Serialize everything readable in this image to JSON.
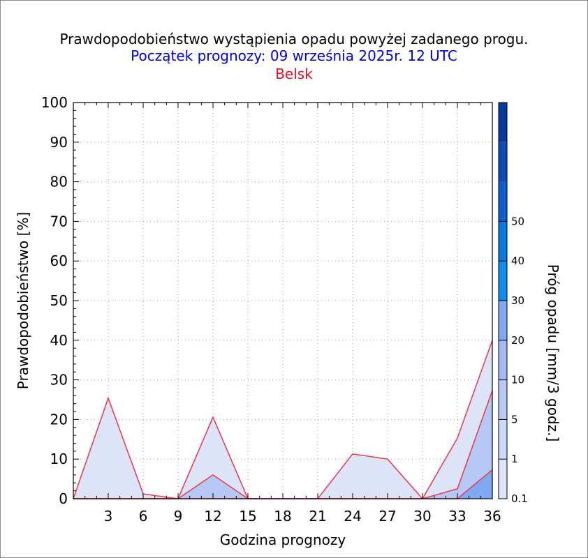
{
  "header": {
    "title": "Prawdopodobieństwo wystąpienia opadu powyżej zadanego progu.",
    "subtitle": "Początek prognozy: 09 września 2025r. 12 UTC",
    "station": "Belsk"
  },
  "colors": {
    "series_stroke": "#e84050",
    "station": "#e01020",
    "subtitle": "#0000dd",
    "threshold_fills": [
      "#dde4f8",
      "#cdd9f8",
      "#b5c8f6",
      "#9fbaf4",
      "#7fa9f2",
      "#0a8cf0",
      "#0679e2",
      "#0d5fcf",
      "#0a4cb8",
      "#053aa1"
    ]
  },
  "chart_data": {
    "type": "area",
    "xlabel": "Godzina prognozy",
    "ylabel": "Prawdopodobieństwo [%]",
    "x": [
      0,
      3,
      6,
      9,
      12,
      15,
      18,
      21,
      24,
      27,
      30,
      33,
      36
    ],
    "xticks": [
      "3",
      "6",
      "9",
      "12",
      "15",
      "18",
      "21",
      "24",
      "27",
      "30",
      "33",
      "36"
    ],
    "yticks": [
      "0",
      "10",
      "20",
      "30",
      "40",
      "50",
      "60",
      "70",
      "80",
      "90",
      "100"
    ],
    "xlim": [
      0,
      36
    ],
    "ylim": [
      0,
      100
    ],
    "grid": "dotted",
    "series": [
      {
        "threshold": 0.1,
        "values": [
          0,
          25.4,
          1.2,
          0,
          20.6,
          0,
          0,
          0,
          11.3,
          10,
          0,
          15.3,
          40
        ]
      },
      {
        "threshold": 1,
        "values": [
          0,
          0,
          0,
          0,
          6,
          0,
          0,
          0,
          0,
          0,
          0,
          2.5,
          27.3
        ]
      },
      {
        "threshold": 5,
        "values": [
          0,
          0,
          0,
          0,
          0,
          0,
          0,
          0,
          0,
          0,
          0,
          0,
          7.3
        ]
      }
    ],
    "colorbar": {
      "label": "Próg opadu [mm/3 godz.]",
      "tick_labels": [
        "0.1",
        "1",
        "5",
        "10",
        "20",
        "30",
        "40",
        "50"
      ]
    }
  }
}
